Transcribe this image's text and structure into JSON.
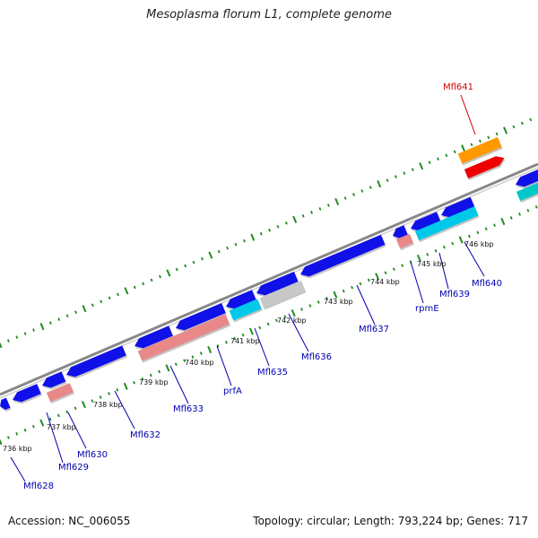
{
  "title": "Mesoplasma florum L1, complete genome",
  "footer": {
    "accession": "Accession: NC_006055",
    "stats": "Topology: circular; Length: 793,224 bp; Genes: 717"
  },
  "colors": {
    "cds": "#1010e8",
    "trna": "#e88888",
    "orange": "#ff9900",
    "red": "#ee0000",
    "cyan": "#00c8e8",
    "teal": "#00c8c8",
    "gray_gene": "#c8c8c8",
    "backbone": "#888888",
    "ruler": "#228b22",
    "label_blue": "#0000b0",
    "label_red": "#d00000"
  },
  "kbp_labels": [
    "736 kbp",
    "737 kbp",
    "738 kbp",
    "739 kbp",
    "740 kbp",
    "741 kbp",
    "742 kbp",
    "743 kbp",
    "744 kbp",
    "745 kbp",
    "746 kbp"
  ],
  "gene_labels": [
    "Mfl628",
    "Mfl629",
    "Mfl630",
    "Mfl632",
    "Mfl633",
    "prfA",
    "Mfl635",
    "Mfl636",
    "Mfl637",
    "rpmE",
    "Mfl639",
    "Mfl640",
    "Mfl641"
  ]
}
